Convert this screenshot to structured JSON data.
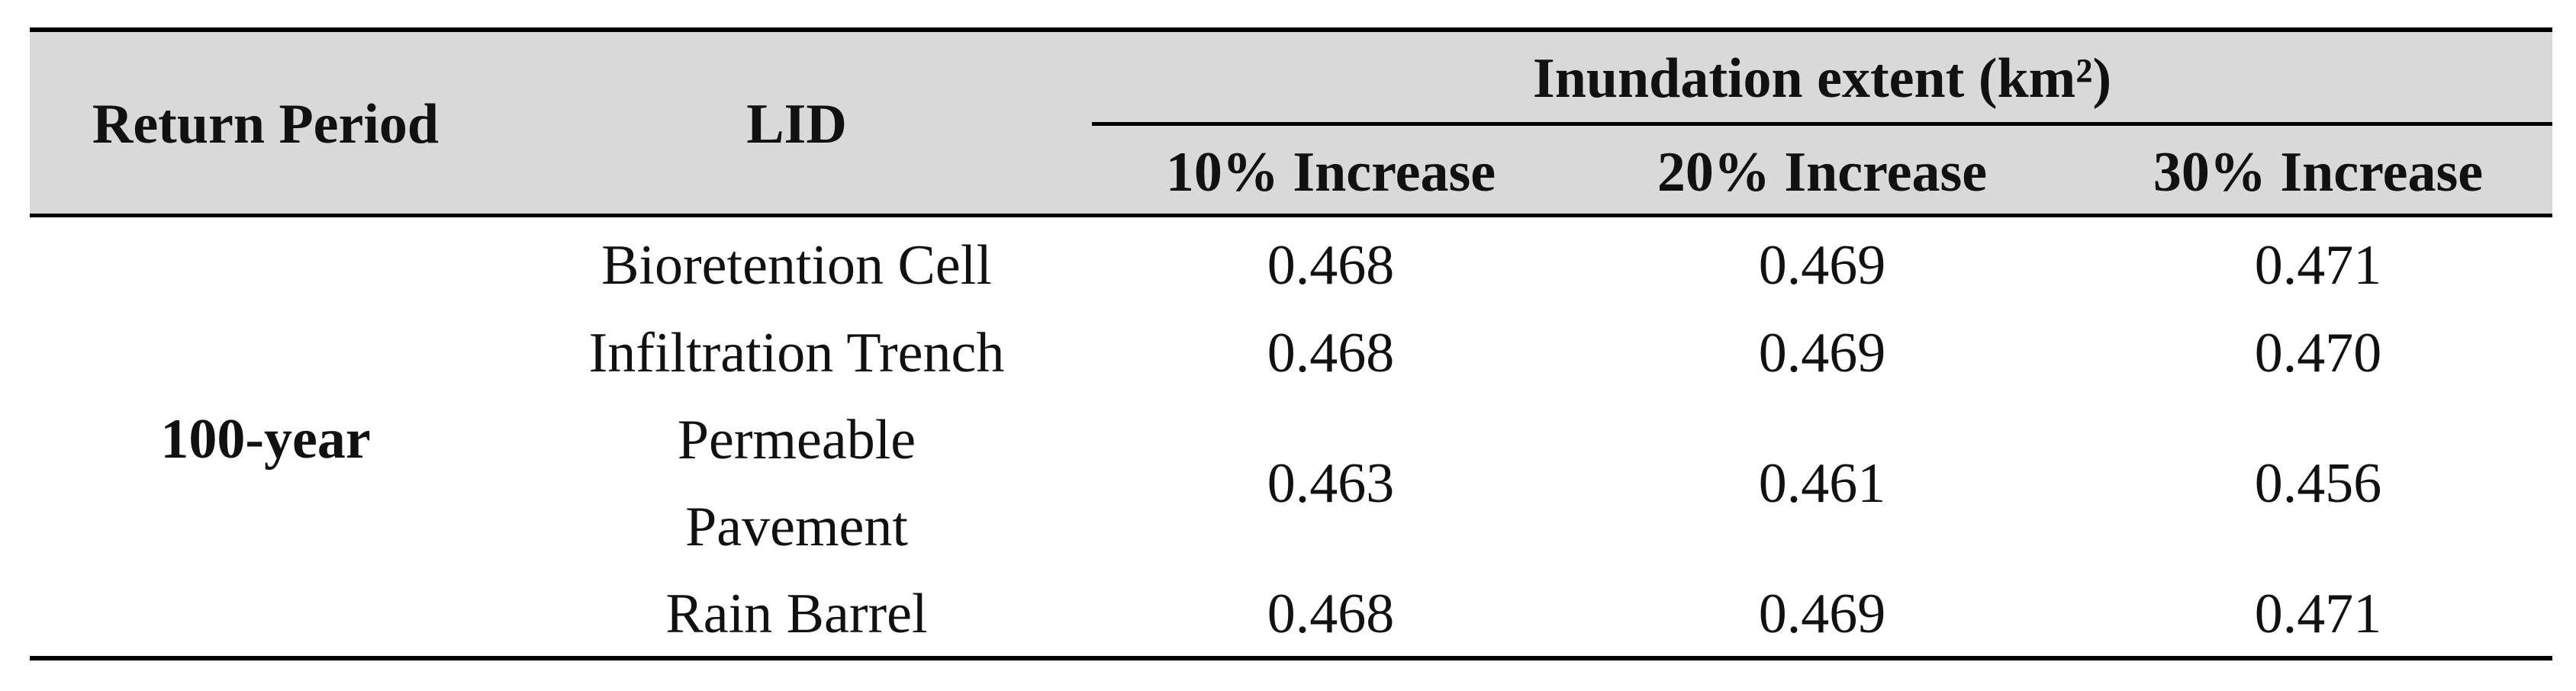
{
  "table": {
    "header": {
      "return_period": "Return Period",
      "lid": "LID",
      "group": "Inundation extent (km²)",
      "columns": [
        "10% Increase",
        "20% Increase",
        "30% Increase"
      ]
    },
    "return_period": "100-year",
    "rows": [
      {
        "lid": "Bioretention Cell",
        "values": [
          "0.468",
          "0.469",
          "0.471"
        ]
      },
      {
        "lid": "Infiltration Trench",
        "values": [
          "0.468",
          "0.469",
          "0.470"
        ]
      },
      {
        "lid": "Permeable Pavement",
        "values": [
          "0.463",
          "0.461",
          "0.456"
        ]
      },
      {
        "lid": "Rain Barrel",
        "values": [
          "0.468",
          "0.469",
          "0.471"
        ]
      }
    ]
  }
}
